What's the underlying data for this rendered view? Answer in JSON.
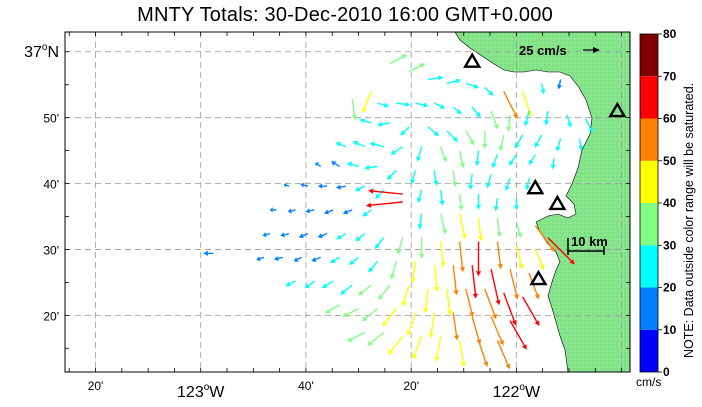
{
  "title": "MNTY Totals: 30-Dec-2010 16:00 GMT+0.000",
  "colorbar": {
    "ticks": [
      "0",
      "10",
      "20",
      "30",
      "40",
      "50",
      "60",
      "70",
      "80"
    ],
    "unit": "cm/s",
    "colors": [
      "#0000ff",
      "#0080ff",
      "#00ffff",
      "#80ff80",
      "#ffff00",
      "#ff8000",
      "#ff0000",
      "#800000"
    ],
    "note": "NOTE: Data outside color range will be saturated."
  },
  "axes": {
    "lat_labels": [
      {
        "text": "37",
        "sup": "o",
        "suffix": "N",
        "lat": 37.0
      },
      {
        "text": "50'",
        "lat": 36.8333
      },
      {
        "text": "40'",
        "lat": 36.6667
      },
      {
        "text": "30'",
        "lat": 36.5
      },
      {
        "text": "20'",
        "lat": 36.3333
      }
    ],
    "lon_labels": [
      {
        "text": "20'",
        "lon": -123.3333
      },
      {
        "text": "123",
        "sup": "o",
        "suffix": "W",
        "lon": -123.0
      },
      {
        "text": "40'",
        "lon": -122.6667
      },
      {
        "text": "20'",
        "lon": -122.3333
      },
      {
        "text": "122",
        "sup": "o",
        "suffix": "W",
        "lon": -122.0
      }
    ],
    "lat_range": [
      36.19,
      37.05
    ],
    "lon_range": [
      -123.43,
      -121.64
    ]
  },
  "scale_arrow": {
    "label": "25 cm/s",
    "speed": 25
  },
  "scale_bar": {
    "label": "10 km"
  },
  "stations": [
    {
      "name": "station-1",
      "lon": -122.14,
      "lat": 36.975
    },
    {
      "name": "station-2",
      "lon": -121.68,
      "lat": 36.85
    },
    {
      "name": "station-3",
      "lon": -121.94,
      "lat": 36.655
    },
    {
      "name": "station-4",
      "lon": -121.87,
      "lat": 36.615
    },
    {
      "name": "station-5",
      "lon": -121.93,
      "lat": 36.425
    }
  ],
  "vectors_note": "",
  "chart_data": {
    "type": "vector_field",
    "title": "MNTY Totals: 30-Dec-2010 16:00 GMT+0.000",
    "xlabel": "",
    "ylabel": "",
    "xlim": [
      -123.43,
      -121.64
    ],
    "ylim": [
      36.19,
      37.05
    ],
    "units": "cm/s",
    "color_range": [
      0,
      80
    ],
    "vectors": [
      {
        "lon": -122.4,
        "lat": 36.97,
        "u": 15,
        "v": 8,
        "s": 35
      },
      {
        "lon": -122.34,
        "lat": 36.95,
        "u": 12,
        "v": 6,
        "s": 32
      },
      {
        "lon": -122.28,
        "lat": 36.93,
        "u": 14,
        "v": 2,
        "s": 28
      },
      {
        "lon": -122.22,
        "lat": 36.92,
        "u": 16,
        "v": 4,
        "s": 26
      },
      {
        "lon": -122.16,
        "lat": 36.92,
        "u": 18,
        "v": -6,
        "s": 25
      },
      {
        "lon": -122.1,
        "lat": 36.91,
        "u": 12,
        "v": -12,
        "s": 22
      },
      {
        "lon": -122.04,
        "lat": 36.9,
        "u": 8,
        "v": -16,
        "s": 55
      },
      {
        "lon": -121.98,
        "lat": 36.9,
        "u": 6,
        "v": -18,
        "s": 48
      },
      {
        "lon": -121.92,
        "lat": 36.92,
        "u": 2,
        "v": -10,
        "s": 20
      },
      {
        "lon": -121.86,
        "lat": 36.93,
        "u": -2,
        "v": -10,
        "s": 18
      },
      {
        "lon": -122.46,
        "lat": 36.9,
        "u": -4,
        "v": -10,
        "s": 42
      },
      {
        "lon": -122.52,
        "lat": 36.88,
        "u": 2,
        "v": -14,
        "s": 38
      },
      {
        "lon": -122.44,
        "lat": 36.87,
        "u": 14,
        "v": -4,
        "s": 22
      },
      {
        "lon": -122.38,
        "lat": 36.87,
        "u": 16,
        "v": -2,
        "s": 25
      },
      {
        "lon": -122.32,
        "lat": 36.87,
        "u": 18,
        "v": -4,
        "s": 24
      },
      {
        "lon": -122.26,
        "lat": 36.87,
        "u": 16,
        "v": -8,
        "s": 22
      },
      {
        "lon": -122.2,
        "lat": 36.86,
        "u": 12,
        "v": -10,
        "s": 20
      },
      {
        "lon": -122.14,
        "lat": 36.86,
        "u": 10,
        "v": -12,
        "s": 24
      },
      {
        "lon": -122.08,
        "lat": 36.85,
        "u": 6,
        "v": -16,
        "s": 35
      },
      {
        "lon": -122.02,
        "lat": 36.84,
        "u": -2,
        "v": -18,
        "s": 30
      },
      {
        "lon": -121.96,
        "lat": 36.85,
        "u": -4,
        "v": -16,
        "s": 28
      },
      {
        "lon": -121.9,
        "lat": 36.85,
        "u": -2,
        "v": -14,
        "s": 26
      },
      {
        "lon": -121.84,
        "lat": 36.84,
        "u": 4,
        "v": -12,
        "s": 24
      },
      {
        "lon": -121.78,
        "lat": 36.83,
        "u": 6,
        "v": -12,
        "s": 28
      },
      {
        "lon": -122.46,
        "lat": 36.82,
        "u": -14,
        "v": 4,
        "s": 22
      },
      {
        "lon": -122.4,
        "lat": 36.82,
        "u": -12,
        "v": -2,
        "s": 24
      },
      {
        "lon": -122.34,
        "lat": 36.81,
        "u": -8,
        "v": -8,
        "s": 22
      },
      {
        "lon": -122.28,
        "lat": 36.81,
        "u": 12,
        "v": -10,
        "s": 26
      },
      {
        "lon": -122.22,
        "lat": 36.8,
        "u": 12,
        "v": -12,
        "s": 28
      },
      {
        "lon": -122.16,
        "lat": 36.8,
        "u": 8,
        "v": -14,
        "s": 30
      },
      {
        "lon": -122.1,
        "lat": 36.8,
        "u": 0,
        "v": -18,
        "s": 32
      },
      {
        "lon": -122.04,
        "lat": 36.79,
        "u": -4,
        "v": -18,
        "s": 30
      },
      {
        "lon": -121.98,
        "lat": 36.79,
        "u": -8,
        "v": -14,
        "s": 28
      },
      {
        "lon": -121.92,
        "lat": 36.79,
        "u": -6,
        "v": -12,
        "s": 26
      },
      {
        "lon": -121.86,
        "lat": 36.78,
        "u": -4,
        "v": -14,
        "s": 24
      },
      {
        "lon": -121.8,
        "lat": 36.78,
        "u": 2,
        "v": -12,
        "s": 22
      },
      {
        "lon": -122.54,
        "lat": 36.76,
        "u": -10,
        "v": 4,
        "s": 20
      },
      {
        "lon": -122.48,
        "lat": 36.76,
        "u": -14,
        "v": 6,
        "s": 24
      },
      {
        "lon": -122.42,
        "lat": 36.76,
        "u": -16,
        "v": 4,
        "s": 26
      },
      {
        "lon": -122.36,
        "lat": 36.76,
        "u": -12,
        "v": -8,
        "s": 26
      },
      {
        "lon": -122.3,
        "lat": 36.76,
        "u": -4,
        "v": -14,
        "s": 28
      },
      {
        "lon": -122.24,
        "lat": 36.76,
        "u": 6,
        "v": -16,
        "s": 30
      },
      {
        "lon": -122.18,
        "lat": 36.75,
        "u": 4,
        "v": -18,
        "s": 32
      },
      {
        "lon": -122.12,
        "lat": 36.75,
        "u": -2,
        "v": -18,
        "s": 28
      },
      {
        "lon": -122.06,
        "lat": 36.74,
        "u": -6,
        "v": -16,
        "s": 26
      },
      {
        "lon": -122.0,
        "lat": 36.74,
        "u": -8,
        "v": -12,
        "s": 24
      },
      {
        "lon": -121.94,
        "lat": 36.74,
        "u": -6,
        "v": -10,
        "s": 22
      },
      {
        "lon": -121.88,
        "lat": 36.73,
        "u": -2,
        "v": -12,
        "s": 20
      },
      {
        "lon": -122.62,
        "lat": 36.71,
        "u": -6,
        "v": 4,
        "s": 12
      },
      {
        "lon": -122.56,
        "lat": 36.71,
        "u": -10,
        "v": 6,
        "s": 18
      },
      {
        "lon": -122.5,
        "lat": 36.71,
        "u": -14,
        "v": 4,
        "s": 22
      },
      {
        "lon": -122.44,
        "lat": 36.71,
        "u": -14,
        "v": -2,
        "s": 24
      },
      {
        "lon": -122.38,
        "lat": 36.7,
        "u": -10,
        "v": -10,
        "s": 24
      },
      {
        "lon": -122.32,
        "lat": 36.7,
        "u": -4,
        "v": -14,
        "s": 26
      },
      {
        "lon": -122.26,
        "lat": 36.7,
        "u": 2,
        "v": -14,
        "s": 28
      },
      {
        "lon": -122.2,
        "lat": 36.7,
        "u": 2,
        "v": -16,
        "s": 30
      },
      {
        "lon": -122.14,
        "lat": 36.69,
        "u": -2,
        "v": -16,
        "s": 28
      },
      {
        "lon": -122.08,
        "lat": 36.69,
        "u": -4,
        "v": -14,
        "s": 26
      },
      {
        "lon": -122.02,
        "lat": 36.68,
        "u": -4,
        "v": -12,
        "s": 24
      },
      {
        "lon": -121.96,
        "lat": 36.68,
        "u": -2,
        "v": -10,
        "s": 22
      },
      {
        "lon": -122.72,
        "lat": 36.66,
        "u": -6,
        "v": 2,
        "s": 10
      },
      {
        "lon": -122.66,
        "lat": 36.66,
        "u": -8,
        "v": 2,
        "s": 14
      },
      {
        "lon": -122.6,
        "lat": 36.66,
        "u": -10,
        "v": 0,
        "s": 16
      },
      {
        "lon": -122.54,
        "lat": 36.66,
        "u": -12,
        "v": -2,
        "s": 18
      },
      {
        "lon": -122.48,
        "lat": 36.66,
        "u": -12,
        "v": -6,
        "s": 20
      },
      {
        "lon": -122.42,
        "lat": 36.65,
        "u": -10,
        "v": -10,
        "s": 22
      },
      {
        "lon": -122.36,
        "lat": 36.64,
        "u": -20,
        "v": 2,
        "s": 62
      },
      {
        "lon": -122.36,
        "lat": 36.62,
        "u": -20,
        "v": -2,
        "s": 66
      },
      {
        "lon": -122.3,
        "lat": 36.65,
        "u": -4,
        "v": -14,
        "s": 24
      },
      {
        "lon": -122.24,
        "lat": 36.65,
        "u": 2,
        "v": -16,
        "s": 28
      },
      {
        "lon": -122.18,
        "lat": 36.64,
        "u": 2,
        "v": -16,
        "s": 30
      },
      {
        "lon": -122.12,
        "lat": 36.64,
        "u": 0,
        "v": -16,
        "s": 28
      },
      {
        "lon": -122.06,
        "lat": 36.63,
        "u": -2,
        "v": -14,
        "s": 24
      },
      {
        "lon": -122.0,
        "lat": 36.63,
        "u": 0,
        "v": -12,
        "s": 22
      },
      {
        "lon": -122.76,
        "lat": 36.6,
        "u": -6,
        "v": 0,
        "s": 12
      },
      {
        "lon": -122.7,
        "lat": 36.6,
        "u": -8,
        "v": -2,
        "s": 14
      },
      {
        "lon": -122.64,
        "lat": 36.6,
        "u": -10,
        "v": -2,
        "s": 16
      },
      {
        "lon": -122.58,
        "lat": 36.6,
        "u": -10,
        "v": -4,
        "s": 18
      },
      {
        "lon": -122.52,
        "lat": 36.6,
        "u": -10,
        "v": -4,
        "s": 18
      },
      {
        "lon": -122.46,
        "lat": 36.6,
        "u": -8,
        "v": -6,
        "s": 20
      },
      {
        "lon": -122.3,
        "lat": 36.59,
        "u": -2,
        "v": -14,
        "s": 28
      },
      {
        "lon": -122.24,
        "lat": 36.59,
        "u": 4,
        "v": -16,
        "s": 38
      },
      {
        "lon": -122.18,
        "lat": 36.59,
        "u": 4,
        "v": -18,
        "s": 46
      },
      {
        "lon": -122.12,
        "lat": 36.58,
        "u": 2,
        "v": -18,
        "s": 42
      },
      {
        "lon": -122.06,
        "lat": 36.58,
        "u": 2,
        "v": -16,
        "s": 35
      },
      {
        "lon": -122.0,
        "lat": 36.57,
        "u": 4,
        "v": -14,
        "s": 30
      },
      {
        "lon": -121.94,
        "lat": 36.56,
        "u": 6,
        "v": -8,
        "s": 58
      },
      {
        "lon": -121.9,
        "lat": 36.53,
        "u": 6,
        "v": -6,
        "s": 68
      },
      {
        "lon": -122.96,
        "lat": 36.49,
        "u": -6,
        "v": 0,
        "s": 18
      },
      {
        "lon": -122.78,
        "lat": 36.54,
        "u": -8,
        "v": -2,
        "s": 14
      },
      {
        "lon": -122.72,
        "lat": 36.54,
        "u": -8,
        "v": -2,
        "s": 16
      },
      {
        "lon": -122.66,
        "lat": 36.54,
        "u": -10,
        "v": -4,
        "s": 18
      },
      {
        "lon": -122.6,
        "lat": 36.54,
        "u": -10,
        "v": -4,
        "s": 18
      },
      {
        "lon": -122.54,
        "lat": 36.54,
        "u": -10,
        "v": -6,
        "s": 20
      },
      {
        "lon": -122.48,
        "lat": 36.54,
        "u": -10,
        "v": -8,
        "s": 22
      },
      {
        "lon": -122.42,
        "lat": 36.53,
        "u": -8,
        "v": -10,
        "s": 26
      },
      {
        "lon": -122.36,
        "lat": 36.53,
        "u": -4,
        "v": -14,
        "s": 32
      },
      {
        "lon": -122.3,
        "lat": 36.53,
        "u": 0,
        "v": -16,
        "s": 38
      },
      {
        "lon": -122.24,
        "lat": 36.52,
        "u": 2,
        "v": -18,
        "s": 46
      },
      {
        "lon": -122.18,
        "lat": 36.52,
        "u": 2,
        "v": -18,
        "s": 55
      },
      {
        "lon": -122.12,
        "lat": 36.52,
        "u": 0,
        "v": -18,
        "s": 62
      },
      {
        "lon": -122.06,
        "lat": 36.52,
        "u": 2,
        "v": -16,
        "s": 50
      },
      {
        "lon": -122.0,
        "lat": 36.51,
        "u": 4,
        "v": -16,
        "s": 44
      },
      {
        "lon": -121.94,
        "lat": 36.5,
        "u": 6,
        "v": -14,
        "s": 40
      },
      {
        "lon": -122.8,
        "lat": 36.48,
        "u": -6,
        "v": -2,
        "s": 14
      },
      {
        "lon": -122.74,
        "lat": 36.48,
        "u": -8,
        "v": -2,
        "s": 16
      },
      {
        "lon": -122.68,
        "lat": 36.48,
        "u": -8,
        "v": -4,
        "s": 16
      },
      {
        "lon": -122.62,
        "lat": 36.48,
        "u": -10,
        "v": -4,
        "s": 18
      },
      {
        "lon": -122.56,
        "lat": 36.48,
        "u": -10,
        "v": -6,
        "s": 20
      },
      {
        "lon": -122.5,
        "lat": 36.48,
        "u": -10,
        "v": -8,
        "s": 22
      },
      {
        "lon": -122.44,
        "lat": 36.47,
        "u": -8,
        "v": -10,
        "s": 26
      },
      {
        "lon": -122.38,
        "lat": 36.47,
        "u": -4,
        "v": -14,
        "s": 34
      },
      {
        "lon": -122.32,
        "lat": 36.47,
        "u": -2,
        "v": -16,
        "s": 40
      },
      {
        "lon": -122.26,
        "lat": 36.46,
        "u": 2,
        "v": -18,
        "s": 48
      },
      {
        "lon": -122.2,
        "lat": 36.46,
        "u": 2,
        "v": -18,
        "s": 54
      },
      {
        "lon": -122.14,
        "lat": 36.46,
        "u": 2,
        "v": -18,
        "s": 60
      },
      {
        "lon": -122.08,
        "lat": 36.45,
        "u": 4,
        "v": -18,
        "s": 66
      },
      {
        "lon": -122.02,
        "lat": 36.45,
        "u": 4,
        "v": -16,
        "s": 56
      },
      {
        "lon": -121.96,
        "lat": 36.44,
        "u": 6,
        "v": -16,
        "s": 50
      },
      {
        "lon": -122.7,
        "lat": 36.42,
        "u": -8,
        "v": -4,
        "s": 20
      },
      {
        "lon": -122.64,
        "lat": 36.42,
        "u": -8,
        "v": -6,
        "s": 22
      },
      {
        "lon": -122.58,
        "lat": 36.42,
        "u": -10,
        "v": -6,
        "s": 24
      },
      {
        "lon": -122.52,
        "lat": 36.41,
        "u": -10,
        "v": -8,
        "s": 28
      },
      {
        "lon": -122.46,
        "lat": 36.41,
        "u": -10,
        "v": -8,
        "s": 30
      },
      {
        "lon": -122.4,
        "lat": 36.41,
        "u": -8,
        "v": -10,
        "s": 34
      },
      {
        "lon": -122.34,
        "lat": 36.41,
        "u": -4,
        "v": -14,
        "s": 40
      },
      {
        "lon": -122.28,
        "lat": 36.4,
        "u": -2,
        "v": -16,
        "s": 44
      },
      {
        "lon": -122.22,
        "lat": 36.4,
        "u": 2,
        "v": -16,
        "s": 48
      },
      {
        "lon": -122.16,
        "lat": 36.4,
        "u": 4,
        "v": -16,
        "s": 52
      },
      {
        "lon": -122.1,
        "lat": 36.4,
        "u": 6,
        "v": -16,
        "s": 58
      },
      {
        "lon": -122.04,
        "lat": 36.39,
        "u": 6,
        "v": -16,
        "s": 62
      },
      {
        "lon": -121.98,
        "lat": 36.38,
        "u": 8,
        "v": -14,
        "s": 60
      },
      {
        "lon": -122.56,
        "lat": 36.36,
        "u": -10,
        "v": -6,
        "s": 30
      },
      {
        "lon": -122.5,
        "lat": 36.35,
        "u": -12,
        "v": -6,
        "s": 32
      },
      {
        "lon": -122.44,
        "lat": 36.35,
        "u": -10,
        "v": -8,
        "s": 36
      },
      {
        "lon": -122.38,
        "lat": 36.35,
        "u": -8,
        "v": -10,
        "s": 40
      },
      {
        "lon": -122.32,
        "lat": 36.34,
        "u": -4,
        "v": -12,
        "s": 44
      },
      {
        "lon": -122.26,
        "lat": 36.34,
        "u": -2,
        "v": -14,
        "s": 46
      },
      {
        "lon": -122.2,
        "lat": 36.34,
        "u": 2,
        "v": -14,
        "s": 50
      },
      {
        "lon": -122.14,
        "lat": 36.33,
        "u": 4,
        "v": -14,
        "s": 52
      },
      {
        "lon": -122.08,
        "lat": 36.33,
        "u": 6,
        "v": -14,
        "s": 56
      },
      {
        "lon": -122.02,
        "lat": 36.32,
        "u": 8,
        "v": -14,
        "s": 60
      },
      {
        "lon": -122.48,
        "lat": 36.29,
        "u": -12,
        "v": -6,
        "s": 36
      },
      {
        "lon": -122.42,
        "lat": 36.29,
        "u": -10,
        "v": -8,
        "s": 38
      },
      {
        "lon": -122.36,
        "lat": 36.28,
        "u": -8,
        "v": -10,
        "s": 42
      },
      {
        "lon": -122.3,
        "lat": 36.28,
        "u": -4,
        "v": -10,
        "s": 44
      },
      {
        "lon": -122.24,
        "lat": 36.28,
        "u": -2,
        "v": -12,
        "s": 46
      },
      {
        "lon": -122.18,
        "lat": 36.27,
        "u": 2,
        "v": -12,
        "s": 48
      },
      {
        "lon": -122.12,
        "lat": 36.27,
        "u": 4,
        "v": -12,
        "s": 50
      },
      {
        "lon": -122.06,
        "lat": 36.27,
        "u": 6,
        "v": -14,
        "s": 56
      }
    ]
  }
}
